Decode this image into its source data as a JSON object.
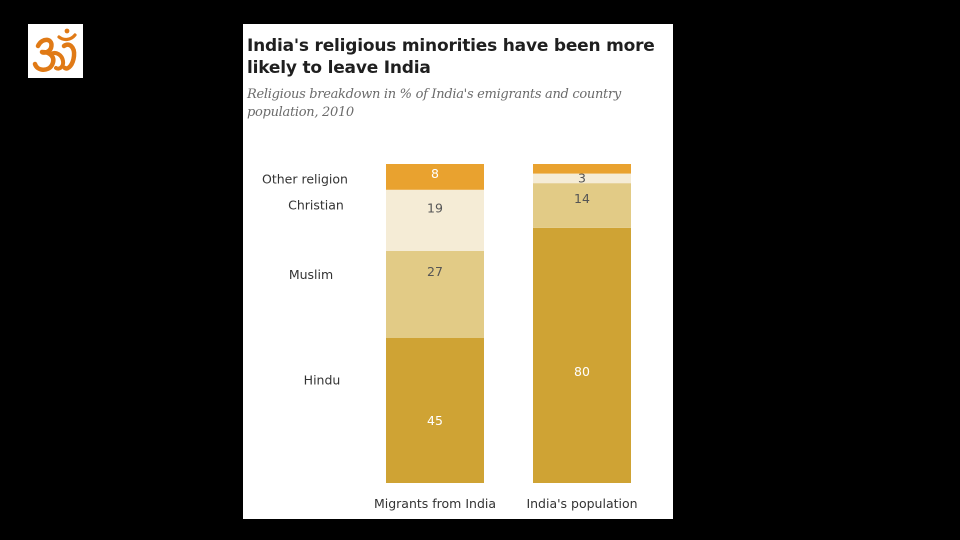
{
  "logo": {
    "icon": "om-symbol-icon",
    "color": "#e07a16"
  },
  "chart_data": {
    "type": "bar",
    "stacked": true,
    "title": "India's religious minorities have been more likely to leave India",
    "subtitle": "Religious breakdown in % of India's emigrants and country population, 2010",
    "categories": [
      "Migrants from India",
      "India's population"
    ],
    "series": [
      {
        "name": "Hindu",
        "values": [
          45,
          80
        ],
        "color": "#cfa334",
        "label_color": "#ffffff"
      },
      {
        "name": "Muslim",
        "values": [
          27,
          14
        ],
        "color": "#e2cb86",
        "label_color": "#555555"
      },
      {
        "name": "Christian",
        "values": [
          19,
          3
        ],
        "color": "#f5ecd6",
        "label_color": "#555555"
      },
      {
        "name": "Other religion",
        "values": [
          8,
          3
        ],
        "color": "#e9a22f",
        "label_color": "#ffffff"
      }
    ],
    "labels": [
      [
        "45",
        "80"
      ],
      [
        "27",
        "14"
      ],
      [
        "19",
        "3"
      ],
      [
        "8",
        ""
      ]
    ],
    "ylim": [
      0,
      100
    ],
    "grid": false,
    "legend": "left"
  }
}
